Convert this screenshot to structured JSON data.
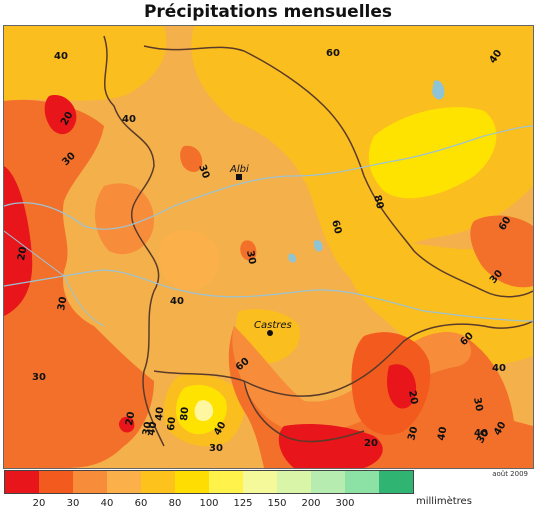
{
  "title": "Précipitations mensuelles",
  "date_note": "août 2009",
  "legend": {
    "unit": "millimètres",
    "bands": [
      {
        "color": "#e8151b"
      },
      {
        "color": "#f35a1e"
      },
      {
        "color": "#f78d3b"
      },
      {
        "color": "#fbb04a"
      },
      {
        "color": "#fdc21b"
      },
      {
        "color": "#fedd02"
      },
      {
        "color": "#fff24a"
      },
      {
        "color": "#f5f99a"
      },
      {
        "color": "#d8f5a8"
      },
      {
        "color": "#b7ecb0"
      },
      {
        "color": "#8ce2a4"
      },
      {
        "color": "#2fb472"
      }
    ],
    "ticks": [
      "20",
      "30",
      "40",
      "60",
      "80",
      "100",
      "125",
      "150",
      "200",
      "300"
    ]
  },
  "cities": [
    {
      "name": "Albi",
      "marker": "square-marker"
    },
    {
      "name": "Castres",
      "marker": "circle-marker"
    }
  ],
  "contour_labels": [
    "40",
    "60",
    "40",
    "20",
    "40",
    "30",
    "60",
    "80",
    "30",
    "20",
    "30",
    "60",
    "30",
    "40",
    "60",
    "40",
    "60",
    "30",
    "30",
    "40",
    "40",
    "30",
    "20",
    "20",
    "30",
    "40",
    "60",
    "80",
    "40",
    "20",
    "30",
    "30",
    "40",
    "40",
    "30"
  ]
}
